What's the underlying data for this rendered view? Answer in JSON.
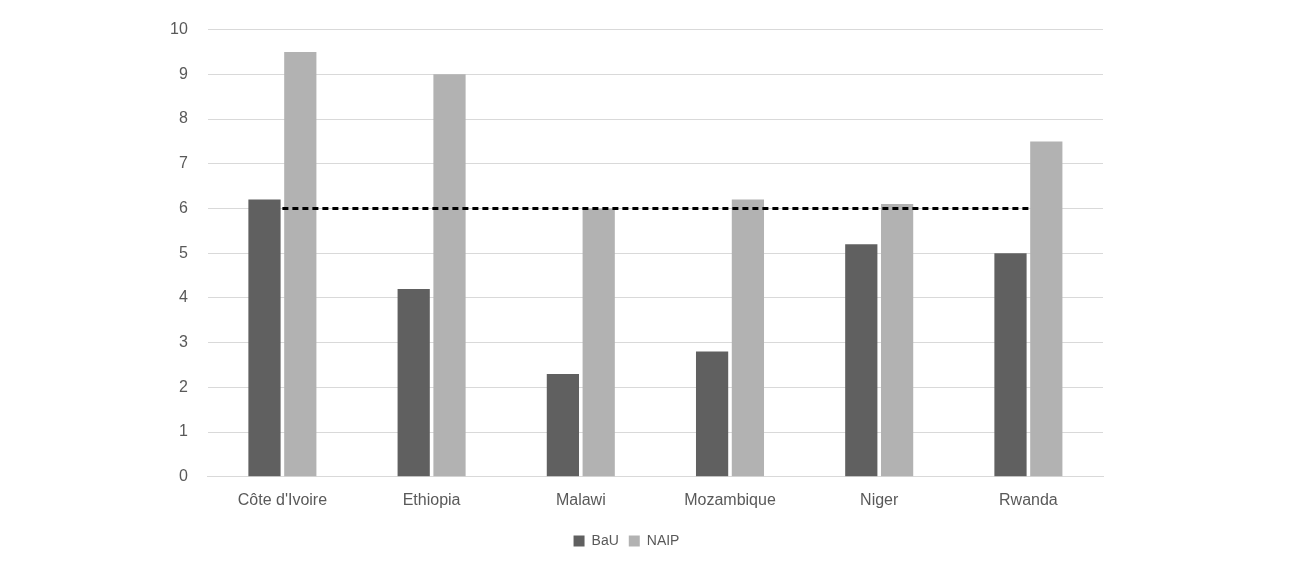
{
  "chart_data": {
    "type": "bar",
    "categories": [
      "Côte d'Ivoire",
      "Ethiopia",
      "Malawi",
      "Mozambique",
      "Niger",
      "Rwanda"
    ],
    "series": [
      {
        "name": "BaU",
        "color": "#606060",
        "values": [
          6.2,
          4.2,
          2.3,
          2.8,
          5.2,
          5.0
        ]
      },
      {
        "name": "NAIP",
        "color": "#b2b2b2",
        "values": [
          9.5,
          9.0,
          6.0,
          6.2,
          6.1,
          7.5
        ]
      },
      {
        "type": "line",
        "color": "#000000",
        "line_style": "dashed",
        "marker": "none",
        "values": [
          6,
          6,
          6,
          6,
          6,
          6
        ]
      }
    ],
    "ylim": [
      0,
      10
    ],
    "yticks": [
      0,
      1,
      2,
      3,
      4,
      5,
      6,
      7,
      8,
      9,
      10
    ],
    "grid": "y",
    "legend": "bottom"
  }
}
